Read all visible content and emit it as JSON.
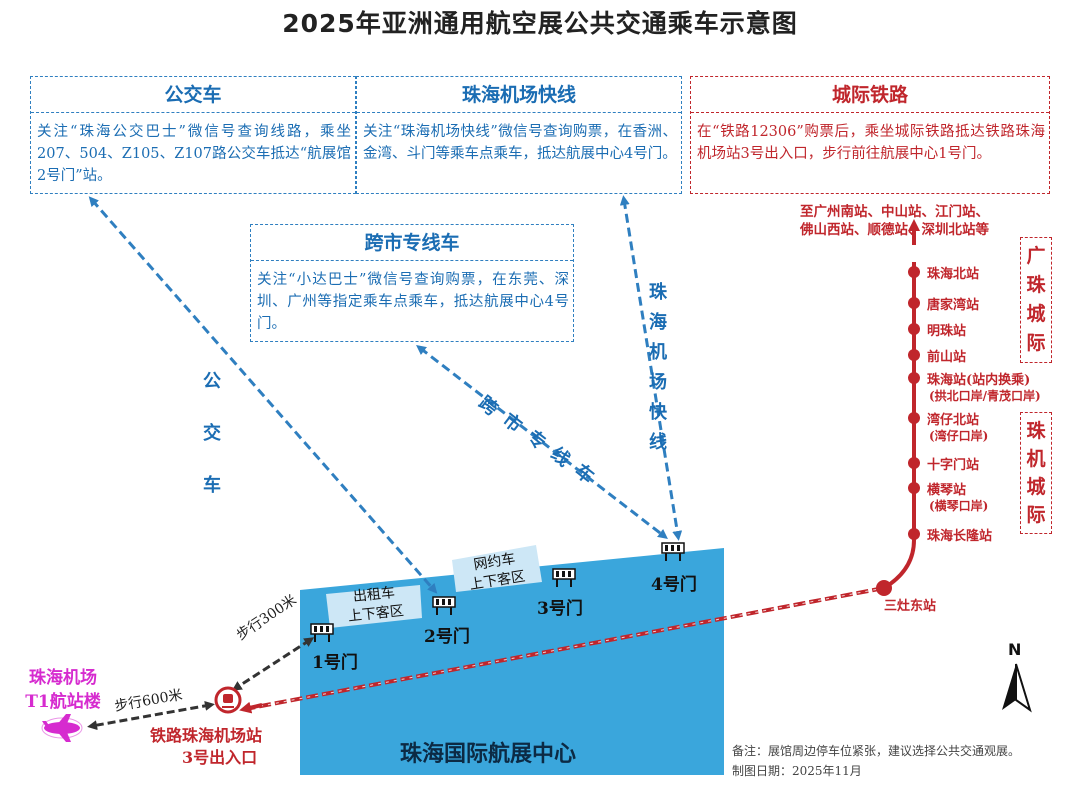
{
  "title": "2025年亚洲通用航空展公共交通乘车示意图",
  "boxes": {
    "bus": {
      "heading": "公交车",
      "body": "关注“珠海公交巴士”微信号查询线路，乘坐207、504、Z105、Z107路公交车抵达“航展馆2号门”站。"
    },
    "airport_express": {
      "heading": "珠海机场快线",
      "body": "关注“珠海机场快线”微信号查询购票，在香洲、金湾、斗门等乘车点乘车，抵达航展中心4号门。"
    },
    "intercity_rail": {
      "heading": "城际铁路",
      "body": "在“铁路12306”购票后，乘坐城际铁路抵达铁路珠海机场站3号出入口，步行前往航展中心1号门。"
    },
    "cross_city": {
      "heading": "跨市专线车",
      "body": "关注“小达巴士”微信号查询购票，在东莞、深圳、广州等指定乘车点乘车，抵达航展中心4号门。"
    }
  },
  "route_labels": {
    "bus": "公交车",
    "airport_express": "珠海机场快线",
    "cross_city": "跨市专线车"
  },
  "rail": {
    "destinations_line1": "至广州南站、中山站、江门站、",
    "destinations_line2": "佛山西站、顺德站、深圳北站等",
    "stations": [
      {
        "name": "珠海北站",
        "sub": ""
      },
      {
        "name": "唐家湾站",
        "sub": ""
      },
      {
        "name": "明珠站",
        "sub": ""
      },
      {
        "name": "前山站",
        "sub": ""
      },
      {
        "name": "珠海站(站内换乘)",
        "sub": "(拱北口岸/青茂口岸)"
      },
      {
        "name": "湾仔北站",
        "sub": "(湾仔口岸)"
      },
      {
        "name": "十字门站",
        "sub": ""
      },
      {
        "name": "横琴站",
        "sub": "(横琴口岸)"
      },
      {
        "name": "珠海长隆站",
        "sub": ""
      }
    ],
    "line_a": "广珠城际",
    "line_b": "珠机城际",
    "sanzao_station": "三灶东站",
    "airport_station_line1": "铁路珠海机场站",
    "airport_station_line2": "3号出入口"
  },
  "venue": {
    "name": "珠海国际航展中心",
    "zones": {
      "taxi": [
        "出租车",
        "上下客区"
      ],
      "ridehail": [
        "网约车",
        "上下客区"
      ]
    },
    "gates": [
      "1号门",
      "2号门",
      "3号门",
      "4号门"
    ]
  },
  "walks": {
    "to_gate1": "步行300米",
    "to_terminal": "步行600米"
  },
  "terminal": {
    "line1": "珠海机场",
    "line2": "T1航站楼"
  },
  "compass": "N",
  "notes": {
    "remark": "备注：展馆周边停车位紧张，建议选择公共交通观展。",
    "date": "制图日期：2025年11月"
  },
  "colors": {
    "blue": "#1b6db3",
    "red": "#c0262c",
    "venue": "#3aa6dc",
    "zone": "#cde7f6",
    "terminal": "#d62bcf"
  },
  "icons": [
    "gate-icon",
    "train-station-icon",
    "airplane-icon",
    "north-arrow-icon"
  ]
}
